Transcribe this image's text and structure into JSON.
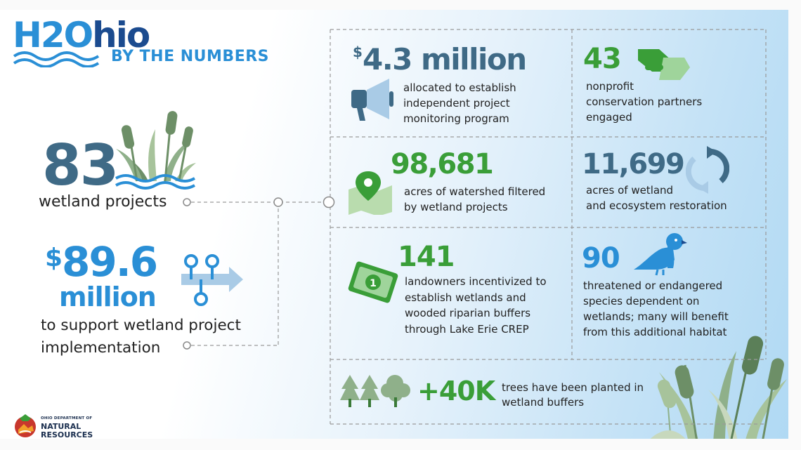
{
  "logo": {
    "h2": "H2",
    "o": "O",
    "ohio": "hio",
    "subtitle": "BY THE NUMBERS"
  },
  "left": {
    "wetland_projects": {
      "number": "83",
      "label": "wetland projects"
    },
    "funding": {
      "dollar": "$",
      "number": "89.6",
      "unit": "million",
      "label_line1": "to support wetland project",
      "label_line2": "implementation"
    }
  },
  "cells": {
    "monitoring": {
      "dollar": "$",
      "number": "4.3 million",
      "lines": [
        "allocated to establish",
        "independent project",
        "monitoring program"
      ]
    },
    "partners": {
      "number": "43",
      "lines": [
        "nonprofit",
        "conservation partners",
        "engaged"
      ]
    },
    "watershed": {
      "number": "98,681",
      "lines": [
        "acres of watershed filtered",
        "by wetland projects"
      ]
    },
    "restoration": {
      "number": "11,699",
      "lines": [
        "acres of wetland",
        "and ecosystem restoration"
      ]
    },
    "landowners": {
      "number": "141",
      "lines": [
        "landowners incentivized to",
        "establish wetlands and",
        "wooded riparian buffers",
        "through Lake Erie CREP"
      ]
    },
    "species": {
      "number": "90",
      "lines": [
        "threatened or endangered",
        "species dependent on",
        "wetlands; many will benefit",
        "from this additional habitat"
      ]
    },
    "trees": {
      "number": "+40K",
      "lines": [
        "trees have been planted in",
        "wetland buffers"
      ]
    }
  },
  "footer": {
    "org_small": "OHIO DEPARTMENT OF",
    "org_line1": "NATURAL",
    "org_line2": "RESOURCES"
  },
  "colors": {
    "blue": "#2a8fd6",
    "navy": "#1b4b8f",
    "slate": "#3f6a86",
    "green": "#3a9e38",
    "sage": "#8fb08a"
  },
  "icons": [
    "water-waves-icon",
    "cattail-icon",
    "flow-arrow-icon",
    "megaphone-icon",
    "handshake-icon",
    "map-pin-icon",
    "recycle-arrows-icon",
    "money-bill-icon",
    "bird-icon",
    "trees-icon",
    "odnr-logo-icon"
  ]
}
